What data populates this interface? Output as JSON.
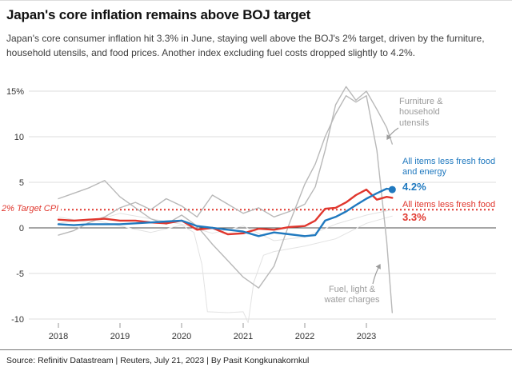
{
  "footer": {
    "source": "Source: Refinitiv Datastream | Reuters, July 21, 2023 | By Pasit Kongkunakornkul"
  },
  "colors": {
    "red": "#e0372e",
    "blue": "#2079bf",
    "gray_labeled": "#b8b8b8",
    "gray_unlabeled": "#e2e2e2",
    "gray_annotation": "#9b9b9b",
    "grid": "#dddddd",
    "zero_line": "#4d4d4d"
  },
  "chart_data": {
    "type": "line",
    "title": "Japan's core inflation remains above BOJ target",
    "subtitle": "Japan's core consumer inflation hit 3.3% in June, staying well above the BOJ's 2% target, driven by the furniture, household utensils, and food prices. Another index excluding fuel costs dropped slightly to 4.2%.",
    "x_axis": {
      "ticks": [
        2018,
        2019,
        2020,
        2021,
        2022,
        2023
      ],
      "range": [
        2017.85,
        2023.6
      ]
    },
    "y_axis": {
      "unit": "%",
      "ticks": [
        {
          "value": 15,
          "label": "15%"
        },
        {
          "value": 10,
          "label": "10"
        },
        {
          "value": 5,
          "label": "5"
        },
        {
          "value": 0,
          "label": "0"
        },
        {
          "value": -5,
          "label": "-5"
        },
        {
          "value": -10,
          "label": "-10"
        }
      ]
    },
    "target_line": {
      "value": 2,
      "label": "2% Target CPI"
    },
    "annotations": {
      "furniture_label": "Furniture & household utensils",
      "fuel_label": "Fuel, light & water charges",
      "core_core_label": "All items less fresh food and energy",
      "core_core_value": "4.2%",
      "core_label": "All items less fresh food",
      "core_value": "3.3%"
    },
    "series": [
      {
        "name": "Unlabeled component A",
        "color": "#e2e2e2",
        "width": 1,
        "x": [
          2018.0,
          2018.5,
          2019.0,
          2019.5,
          2020.0,
          2020.2,
          2020.33,
          2020.42,
          2020.75,
          2021.0,
          2021.08,
          2021.17,
          2021.33,
          2021.5,
          2022.0,
          2022.5,
          2023.0,
          2023.42
        ],
        "y": [
          0.5,
          1.0,
          0.2,
          -0.5,
          0.3,
          -0.5,
          -4.0,
          -9.2,
          -9.3,
          -9.2,
          -10.4,
          -6.0,
          -3.0,
          -2.6,
          -2.0,
          -1.2,
          0.5,
          1.3
        ]
      },
      {
        "name": "Unlabeled component B",
        "color": "#e2e2e2",
        "width": 1,
        "x": [
          2018.0,
          2018.5,
          2019.0,
          2019.5,
          2020.0,
          2020.5,
          2021.0,
          2021.5,
          2022.0,
          2022.5,
          2023.0,
          2023.42
        ],
        "y": [
          1.2,
          0.6,
          1.6,
          1.0,
          0.4,
          -0.6,
          0.2,
          -1.4,
          -1.0,
          0.4,
          1.4,
          2.0
        ]
      },
      {
        "name": "Furniture & household utensils",
        "color": "#b8b8b8",
        "width": 1.4,
        "x": [
          2018.0,
          2018.25,
          2018.5,
          2018.75,
          2019.0,
          2019.25,
          2019.5,
          2019.75,
          2020.0,
          2020.25,
          2020.5,
          2020.75,
          2021.0,
          2021.25,
          2021.5,
          2021.75,
          2022.0,
          2022.17,
          2022.33,
          2022.5,
          2022.67,
          2022.83,
          2023.0,
          2023.17,
          2023.33,
          2023.42
        ],
        "y": [
          -0.8,
          -0.3,
          0.6,
          1.2,
          2.2,
          2.8,
          2.0,
          3.2,
          2.4,
          1.2,
          3.6,
          2.6,
          1.6,
          2.2,
          1.2,
          1.8,
          2.6,
          4.5,
          8.5,
          13.5,
          15.5,
          14.0,
          15.0,
          13.0,
          11.0,
          9.2
        ]
      },
      {
        "name": "Fuel, light & water charges",
        "color": "#b8b8b8",
        "width": 1.4,
        "x": [
          2018.0,
          2018.25,
          2018.5,
          2018.75,
          2019.0,
          2019.25,
          2019.5,
          2019.75,
          2020.0,
          2020.25,
          2020.5,
          2020.75,
          2021.0,
          2021.25,
          2021.5,
          2021.75,
          2022.0,
          2022.17,
          2022.33,
          2022.5,
          2022.67,
          2022.83,
          2023.0,
          2023.17,
          2023.33,
          2023.42
        ],
        "y": [
          3.2,
          3.8,
          4.4,
          5.2,
          3.4,
          2.2,
          1.0,
          0.4,
          1.4,
          0.2,
          -1.8,
          -3.6,
          -5.4,
          -6.6,
          -4.2,
          0.5,
          4.8,
          7.0,
          10.0,
          12.5,
          14.5,
          13.8,
          14.5,
          8.5,
          -1.5,
          -9.3
        ]
      },
      {
        "name": "All items less fresh food",
        "color": "#e0372e",
        "width": 2.4,
        "end_label": "3.3%",
        "x": [
          2018.0,
          2018.25,
          2018.5,
          2018.75,
          2019.0,
          2019.25,
          2019.5,
          2019.75,
          2020.0,
          2020.25,
          2020.5,
          2020.75,
          2021.0,
          2021.25,
          2021.5,
          2021.75,
          2022.0,
          2022.17,
          2022.33,
          2022.5,
          2022.67,
          2022.83,
          2023.0,
          2023.17,
          2023.33,
          2023.42
        ],
        "y": [
          0.9,
          0.8,
          0.9,
          1.0,
          0.8,
          0.8,
          0.6,
          0.5,
          0.8,
          -0.2,
          0.0,
          -0.7,
          -0.6,
          -0.1,
          -0.2,
          0.1,
          0.2,
          0.8,
          2.1,
          2.2,
          2.8,
          3.6,
          4.2,
          3.1,
          3.4,
          3.3
        ]
      },
      {
        "name": "All items less fresh food and energy",
        "color": "#2079bf",
        "width": 2.4,
        "end_label": "4.2%",
        "end_dot": true,
        "x": [
          2018.0,
          2018.25,
          2018.5,
          2018.75,
          2019.0,
          2019.25,
          2019.5,
          2019.75,
          2020.0,
          2020.25,
          2020.5,
          2020.75,
          2021.0,
          2021.25,
          2021.5,
          2021.75,
          2022.0,
          2022.17,
          2022.33,
          2022.5,
          2022.67,
          2022.83,
          2023.0,
          2023.17,
          2023.33,
          2023.42
        ],
        "y": [
          0.4,
          0.3,
          0.4,
          0.4,
          0.4,
          0.5,
          0.6,
          0.7,
          0.8,
          0.2,
          0.0,
          -0.2,
          -0.4,
          -0.9,
          -0.5,
          -0.7,
          -0.9,
          -0.8,
          0.8,
          1.2,
          1.8,
          2.5,
          3.2,
          3.8,
          4.3,
          4.2
        ]
      }
    ]
  }
}
